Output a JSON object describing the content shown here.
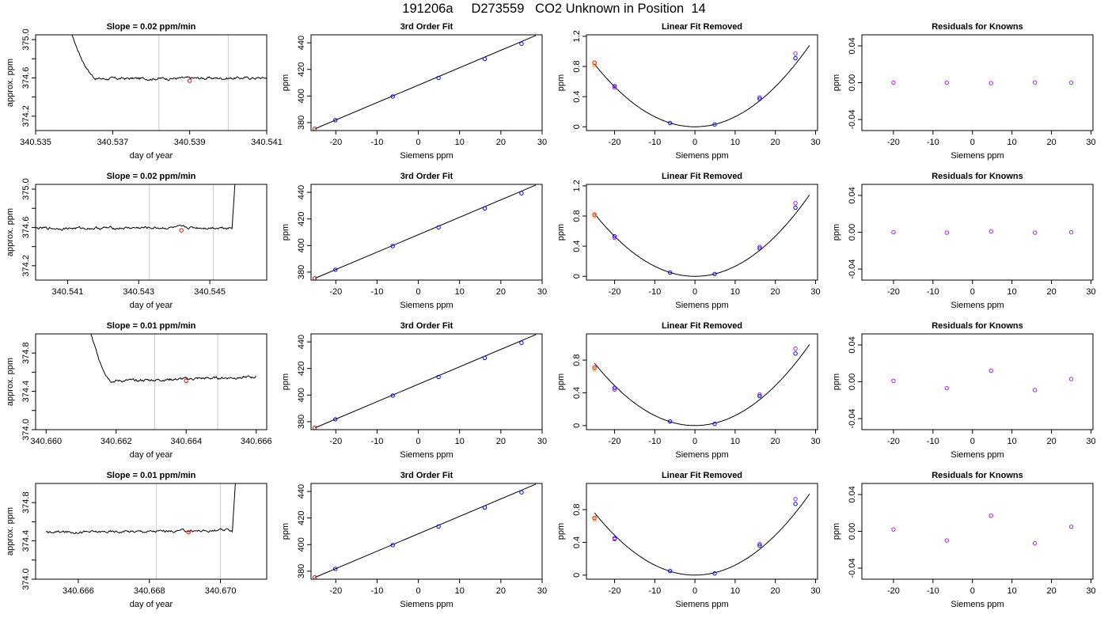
{
  "page": {
    "title": "191206a     D273559   CO2 Unknown in Position  14"
  },
  "colors": {
    "line": "#000000",
    "axis": "#000000",
    "vline": "#c8c8c8",
    "known_blue": "#0000ff",
    "known_purple": "#a020f0",
    "known_red": "#ff0000",
    "known_orange": "#ff8c00",
    "marker": "#ff0000"
  },
  "chart_data": [
    {
      "type": "line",
      "row": 1,
      "title": "Slope =  0.02  ppm/min",
      "xlabel": "day of year",
      "ylabel": "approx. ppm",
      "xlim": [
        340.535,
        340.541
      ],
      "ylim": [
        374.05,
        375.05
      ],
      "xticks": [
        340.535,
        340.537,
        340.539,
        340.541
      ],
      "xtick_labels": [
        "340.535",
        "340.537",
        "340.539",
        "340.541"
      ],
      "yticks": [
        374.2,
        374.6,
        375.0
      ],
      "ytick_labels": [
        "374.2",
        "374.6",
        "375.0"
      ],
      "yticks_minor": [
        374.4,
        374.8
      ],
      "vlines": [
        340.5382,
        340.54
      ],
      "marker": [
        340.539,
        374.57
      ],
      "trace": {
        "x_start": 340.5359,
        "x_end": 340.541,
        "settle_x": 340.5366,
        "level": 374.59,
        "level_end": 374.6,
        "start_value": 375.1,
        "noise": 0.015,
        "spike_at_end": false
      }
    },
    {
      "type": "scatter",
      "row": 1,
      "title": "3rd Order Fit",
      "xlabel": "Siemens ppm",
      "ylabel": "ppm",
      "xlim": [
        -26,
        30
      ],
      "ylim": [
        374,
        446
      ],
      "xticks": [
        -20,
        -10,
        0,
        10,
        20,
        30
      ],
      "yticks": [
        380,
        400,
        420,
        440
      ],
      "fit_line": [
        [
          -25,
          375.4
        ],
        [
          28.5,
          445.5
        ]
      ],
      "points": [
        {
          "x": -25.1,
          "y": 375.4,
          "color": "known_red"
        },
        {
          "x": -20.1,
          "y": 381.8,
          "color": "known_blue"
        },
        {
          "x": -6.2,
          "y": 399.6,
          "color": "known_blue"
        },
        {
          "x": 4.9,
          "y": 413.6,
          "color": "known_blue"
        },
        {
          "x": 16.1,
          "y": 427.9,
          "color": "known_blue"
        },
        {
          "x": 25.0,
          "y": 439.3,
          "color": "known_blue"
        }
      ]
    },
    {
      "type": "scatter",
      "row": 1,
      "title": "Linear Fit Removed",
      "xlabel": "Siemens ppm",
      "ylabel": "ppm",
      "xlim": [
        -27,
        30.5
      ],
      "ylim": [
        -0.05,
        1.22
      ],
      "xticks": [
        -20,
        -10,
        0,
        10,
        20,
        30
      ],
      "yticks": [
        0.0,
        0.4,
        0.8,
        1.2
      ],
      "curve": {
        "a": 0.00133,
        "x_from": -25,
        "x_to": 28.5
      },
      "points": [
        {
          "x": -25,
          "y": 0.85,
          "color": "known_red"
        },
        {
          "x": -25,
          "y": 0.82,
          "color": "known_orange"
        },
        {
          "x": -20,
          "y": 0.54,
          "color": "known_blue"
        },
        {
          "x": -20,
          "y": 0.52,
          "color": "known_purple"
        },
        {
          "x": -6.2,
          "y": 0.05,
          "color": "known_blue"
        },
        {
          "x": 4.9,
          "y": 0.03,
          "color": "known_blue"
        },
        {
          "x": 16.1,
          "y": 0.39,
          "color": "known_purple"
        },
        {
          "x": 16.1,
          "y": 0.37,
          "color": "known_blue"
        },
        {
          "x": 25,
          "y": 0.97,
          "color": "known_purple"
        },
        {
          "x": 25,
          "y": 0.91,
          "color": "known_blue"
        }
      ]
    },
    {
      "type": "scatter",
      "row": 1,
      "title": "Residuals for Knowns",
      "xlabel": "Siemens ppm",
      "ylabel": "ppm",
      "xlim": [
        -28,
        30.5
      ],
      "ylim": [
        -0.052,
        0.052
      ],
      "xticks": [
        -20,
        -10,
        0,
        10,
        20,
        30
      ],
      "yticks": [
        -0.04,
        0.0,
        0.04
      ],
      "ytick_labels": [
        "-0.04",
        "0.00",
        "0.04"
      ],
      "points": [
        {
          "x": -20,
          "y": 0.0,
          "color": "known_purple"
        },
        {
          "x": -6.5,
          "y": 0.0,
          "color": "known_purple"
        },
        {
          "x": 4.7,
          "y": -0.0005,
          "color": "known_purple"
        },
        {
          "x": 15.8,
          "y": 0.0003,
          "color": "known_purple"
        },
        {
          "x": 25,
          "y": 0.0,
          "color": "known_purple"
        }
      ]
    },
    {
      "type": "line",
      "row": 2,
      "title": "Slope =  0.02  ppm/min",
      "xlabel": "day of year",
      "ylabel": "approx. ppm",
      "xlim": [
        340.5401,
        340.5466
      ],
      "ylim": [
        374.05,
        375.05
      ],
      "xticks": [
        340.541,
        340.543,
        340.545
      ],
      "xtick_labels": [
        "340.541",
        "340.543",
        "340.545"
      ],
      "yticks": [
        374.2,
        374.6,
        375.0
      ],
      "ytick_labels": [
        "374.2",
        "374.6",
        "375.0"
      ],
      "yticks_minor": [
        374.4,
        374.8
      ],
      "vlines": [
        340.5433,
        340.5451
      ],
      "marker": [
        340.5442,
        374.57
      ],
      "trace": {
        "x_start": 340.5401,
        "x_end": 340.5458,
        "settle_x": 340.5401,
        "level": 374.59,
        "level_end": 374.6,
        "start_value": 374.6,
        "noise": 0.015,
        "spike_at_end": true
      }
    },
    {
      "type": "scatter",
      "row": 2,
      "title": "3rd Order Fit",
      "xlabel": "Siemens ppm",
      "ylabel": "ppm",
      "xlim": [
        -26,
        30
      ],
      "ylim": [
        374,
        446
      ],
      "xticks": [
        -20,
        -10,
        0,
        10,
        20,
        30
      ],
      "yticks": [
        380,
        400,
        420,
        440
      ],
      "fit_line": [
        [
          -25,
          375.4
        ],
        [
          28.5,
          445.5
        ]
      ],
      "points": [
        {
          "x": -25.1,
          "y": 375.4,
          "color": "known_red"
        },
        {
          "x": -20.1,
          "y": 381.8,
          "color": "known_blue"
        },
        {
          "x": -6.2,
          "y": 399.6,
          "color": "known_blue"
        },
        {
          "x": 4.9,
          "y": 413.6,
          "color": "known_blue"
        },
        {
          "x": 16.1,
          "y": 427.9,
          "color": "known_blue"
        },
        {
          "x": 25.0,
          "y": 439.3,
          "color": "known_blue"
        }
      ]
    },
    {
      "type": "scatter",
      "row": 2,
      "title": "Linear Fit Removed",
      "xlabel": "Siemens ppm",
      "ylabel": "ppm",
      "xlim": [
        -27,
        30.5
      ],
      "ylim": [
        -0.05,
        1.22
      ],
      "xticks": [
        -20,
        -10,
        0,
        10,
        20,
        30
      ],
      "yticks": [
        0.0,
        0.4,
        0.8,
        1.2
      ],
      "curve": {
        "a": 0.00133,
        "x_from": -25,
        "x_to": 28.5
      },
      "points": [
        {
          "x": -25,
          "y": 0.82,
          "color": "known_red"
        },
        {
          "x": -25,
          "y": 0.8,
          "color": "known_orange"
        },
        {
          "x": -20,
          "y": 0.53,
          "color": "known_blue"
        },
        {
          "x": -20,
          "y": 0.51,
          "color": "known_purple"
        },
        {
          "x": -6.2,
          "y": 0.05,
          "color": "known_blue"
        },
        {
          "x": 4.9,
          "y": 0.03,
          "color": "known_blue"
        },
        {
          "x": 16.1,
          "y": 0.39,
          "color": "known_purple"
        },
        {
          "x": 16.1,
          "y": 0.37,
          "color": "known_blue"
        },
        {
          "x": 25,
          "y": 0.97,
          "color": "known_purple"
        },
        {
          "x": 25,
          "y": 0.91,
          "color": "known_blue"
        }
      ]
    },
    {
      "type": "scatter",
      "row": 2,
      "title": "Residuals for Knowns",
      "xlabel": "Siemens ppm",
      "ylabel": "ppm",
      "xlim": [
        -28,
        30.5
      ],
      "ylim": [
        -0.052,
        0.052
      ],
      "xticks": [
        -20,
        -10,
        0,
        10,
        20,
        30
      ],
      "yticks": [
        -0.04,
        0.0,
        0.04
      ],
      "ytick_labels": [
        "-0.04",
        "0.00",
        "0.04"
      ],
      "points": [
        {
          "x": -20,
          "y": 0.0,
          "color": "known_purple"
        },
        {
          "x": -6.5,
          "y": -0.0005,
          "color": "known_purple"
        },
        {
          "x": 4.7,
          "y": 0.0008,
          "color": "known_purple"
        },
        {
          "x": 15.8,
          "y": -0.0005,
          "color": "known_purple"
        },
        {
          "x": 25,
          "y": 0.0,
          "color": "known_purple"
        }
      ]
    },
    {
      "type": "line",
      "row": 3,
      "title": "Slope =  0.01  ppm/min",
      "xlabel": "day of year",
      "ylabel": "approx. ppm",
      "xlim": [
        340.6597,
        340.6663
      ],
      "ylim": [
        374.0,
        375.0
      ],
      "xticks": [
        340.66,
        340.662,
        340.664,
        340.666
      ],
      "xtick_labels": [
        "340.660",
        "340.662",
        "340.664",
        "340.666"
      ],
      "yticks": [
        374.0,
        374.4,
        374.8
      ],
      "ytick_labels": [
        "374.0",
        "374.4",
        "374.8"
      ],
      "yticks_minor": [
        374.2,
        374.6
      ],
      "vlines": [
        340.6631,
        340.6649
      ],
      "marker": [
        340.664,
        374.51
      ],
      "trace": {
        "x_start": 340.6612,
        "x_end": 340.666,
        "settle_x": 340.6619,
        "level": 374.5,
        "level_end": 374.55,
        "start_value": 375.1,
        "noise": 0.014,
        "spike_at_end": false
      }
    },
    {
      "type": "scatter",
      "row": 3,
      "title": "3rd Order Fit",
      "xlabel": "Siemens ppm",
      "ylabel": "ppm",
      "xlim": [
        -26,
        30
      ],
      "ylim": [
        374,
        446
      ],
      "xticks": [
        -20,
        -10,
        0,
        10,
        20,
        30
      ],
      "yticks": [
        380,
        400,
        420,
        440
      ],
      "fit_line": [
        [
          -25,
          375.4
        ],
        [
          28.5,
          445.5
        ]
      ],
      "points": [
        {
          "x": -25.1,
          "y": 375.4,
          "color": "known_red"
        },
        {
          "x": -20.1,
          "y": 381.8,
          "color": "known_blue"
        },
        {
          "x": -6.2,
          "y": 399.6,
          "color": "known_blue"
        },
        {
          "x": 4.9,
          "y": 413.6,
          "color": "known_blue"
        },
        {
          "x": 16.1,
          "y": 427.9,
          "color": "known_blue"
        },
        {
          "x": 25.0,
          "y": 439.3,
          "color": "known_blue"
        }
      ]
    },
    {
      "type": "scatter",
      "row": 3,
      "title": "Linear Fit Removed",
      "xlabel": "Siemens ppm",
      "ylabel": "ppm",
      "xlim": [
        -27,
        30.5
      ],
      "ylim": [
        -0.05,
        1.12
      ],
      "xticks": [
        -20,
        -10,
        0,
        10,
        20,
        30
      ],
      "yticks": [
        0.0,
        0.4,
        0.8
      ],
      "curve": {
        "a": 0.00122,
        "x_from": -25,
        "x_to": 28.5
      },
      "points": [
        {
          "x": -25,
          "y": 0.71,
          "color": "known_red"
        },
        {
          "x": -25,
          "y": 0.69,
          "color": "known_orange"
        },
        {
          "x": -20,
          "y": 0.46,
          "color": "known_blue"
        },
        {
          "x": -20,
          "y": 0.44,
          "color": "known_purple"
        },
        {
          "x": -6.2,
          "y": 0.05,
          "color": "known_blue"
        },
        {
          "x": 4.9,
          "y": 0.02,
          "color": "known_blue"
        },
        {
          "x": 16.1,
          "y": 0.38,
          "color": "known_purple"
        },
        {
          "x": 16.1,
          "y": 0.36,
          "color": "known_blue"
        },
        {
          "x": 25,
          "y": 0.94,
          "color": "known_purple"
        },
        {
          "x": 25,
          "y": 0.88,
          "color": "known_blue"
        }
      ]
    },
    {
      "type": "scatter",
      "row": 3,
      "title": "Residuals for Knowns",
      "xlabel": "Siemens ppm",
      "ylabel": "ppm",
      "xlim": [
        -28,
        30.5
      ],
      "ylim": [
        -0.052,
        0.052
      ],
      "xticks": [
        -20,
        -10,
        0,
        10,
        20,
        30
      ],
      "yticks": [
        -0.04,
        0.0,
        0.04
      ],
      "ytick_labels": [
        "-0.04",
        "0.00",
        "0.04"
      ],
      "points": [
        {
          "x": -20,
          "y": 0.001,
          "color": "known_purple"
        },
        {
          "x": -6.5,
          "y": -0.007,
          "color": "known_purple"
        },
        {
          "x": 4.7,
          "y": 0.012,
          "color": "known_purple"
        },
        {
          "x": 15.8,
          "y": -0.009,
          "color": "known_purple"
        },
        {
          "x": 25,
          "y": 0.003,
          "color": "known_purple"
        }
      ]
    },
    {
      "type": "line",
      "row": 4,
      "title": "Slope =  0.01  ppm/min",
      "xlabel": "day of year",
      "ylabel": "approx. ppm",
      "xlim": [
        340.6648,
        340.6713
      ],
      "ylim": [
        374.0,
        375.0
      ],
      "xticks": [
        340.666,
        340.668,
        340.67
      ],
      "xtick_labels": [
        "340.666",
        "340.668",
        "340.670"
      ],
      "yticks": [
        374.0,
        374.4,
        374.8
      ],
      "ytick_labels": [
        "374.0",
        "374.4",
        "374.8"
      ],
      "yticks_minor": [
        374.2,
        374.6
      ],
      "vlines": [
        340.6682,
        340.67
      ],
      "marker": [
        340.6691,
        374.49
      ],
      "trace": {
        "x_start": 340.6651,
        "x_end": 340.6705,
        "settle_x": 340.6651,
        "level": 374.49,
        "level_end": 374.51,
        "start_value": 374.56,
        "noise": 0.014,
        "spike_at_end": true
      }
    },
    {
      "type": "scatter",
      "row": 4,
      "title": "3rd Order Fit",
      "xlabel": "Siemens ppm",
      "ylabel": "ppm",
      "xlim": [
        -26,
        30
      ],
      "ylim": [
        374,
        446
      ],
      "xticks": [
        -20,
        -10,
        0,
        10,
        20,
        30
      ],
      "yticks": [
        380,
        400,
        420,
        440
      ],
      "fit_line": [
        [
          -25,
          375.4
        ],
        [
          28.5,
          445.5
        ]
      ],
      "points": [
        {
          "x": -25.1,
          "y": 375.4,
          "color": "known_red"
        },
        {
          "x": -20.1,
          "y": 381.8,
          "color": "known_blue"
        },
        {
          "x": -6.2,
          "y": 399.6,
          "color": "known_blue"
        },
        {
          "x": 4.9,
          "y": 413.6,
          "color": "known_blue"
        },
        {
          "x": 16.1,
          "y": 427.9,
          "color": "known_blue"
        },
        {
          "x": 25.0,
          "y": 439.3,
          "color": "known_blue"
        }
      ]
    },
    {
      "type": "scatter",
      "row": 4,
      "title": "Linear Fit Removed",
      "xlabel": "Siemens ppm",
      "ylabel": "ppm",
      "xlim": [
        -27,
        30.5
      ],
      "ylim": [
        -0.05,
        1.12
      ],
      "xticks": [
        -20,
        -10,
        0,
        10,
        20,
        30
      ],
      "yticks": [
        0.0,
        0.4,
        0.8
      ],
      "curve": {
        "a": 0.00122,
        "x_from": -25,
        "x_to": 28.5
      },
      "points": [
        {
          "x": -25,
          "y": 0.7,
          "color": "known_red"
        },
        {
          "x": -25,
          "y": 0.68,
          "color": "known_orange"
        },
        {
          "x": -20,
          "y": 0.45,
          "color": "known_blue"
        },
        {
          "x": -20,
          "y": 0.44,
          "color": "known_purple"
        },
        {
          "x": -6.2,
          "y": 0.05,
          "color": "known_blue"
        },
        {
          "x": 4.9,
          "y": 0.02,
          "color": "known_blue"
        },
        {
          "x": 16.1,
          "y": 0.38,
          "color": "known_purple"
        },
        {
          "x": 16.1,
          "y": 0.36,
          "color": "known_blue"
        },
        {
          "x": 25,
          "y": 0.93,
          "color": "known_purple"
        },
        {
          "x": 25,
          "y": 0.87,
          "color": "known_blue"
        }
      ]
    },
    {
      "type": "scatter",
      "row": 4,
      "title": "Residuals for Knowns",
      "xlabel": "Siemens ppm",
      "ylabel": "ppm",
      "xlim": [
        -28,
        30.5
      ],
      "ylim": [
        -0.052,
        0.052
      ],
      "xticks": [
        -20,
        -10,
        0,
        10,
        20,
        30
      ],
      "yticks": [
        -0.04,
        0.0,
        0.04
      ],
      "ytick_labels": [
        "-0.04",
        "0.00",
        "0.04"
      ],
      "points": [
        {
          "x": -20,
          "y": 0.002,
          "color": "known_purple"
        },
        {
          "x": -6.5,
          "y": -0.01,
          "color": "known_purple"
        },
        {
          "x": 4.7,
          "y": 0.017,
          "color": "known_purple"
        },
        {
          "x": 15.8,
          "y": -0.013,
          "color": "known_purple"
        },
        {
          "x": 25,
          "y": 0.005,
          "color": "known_purple"
        }
      ]
    }
  ]
}
